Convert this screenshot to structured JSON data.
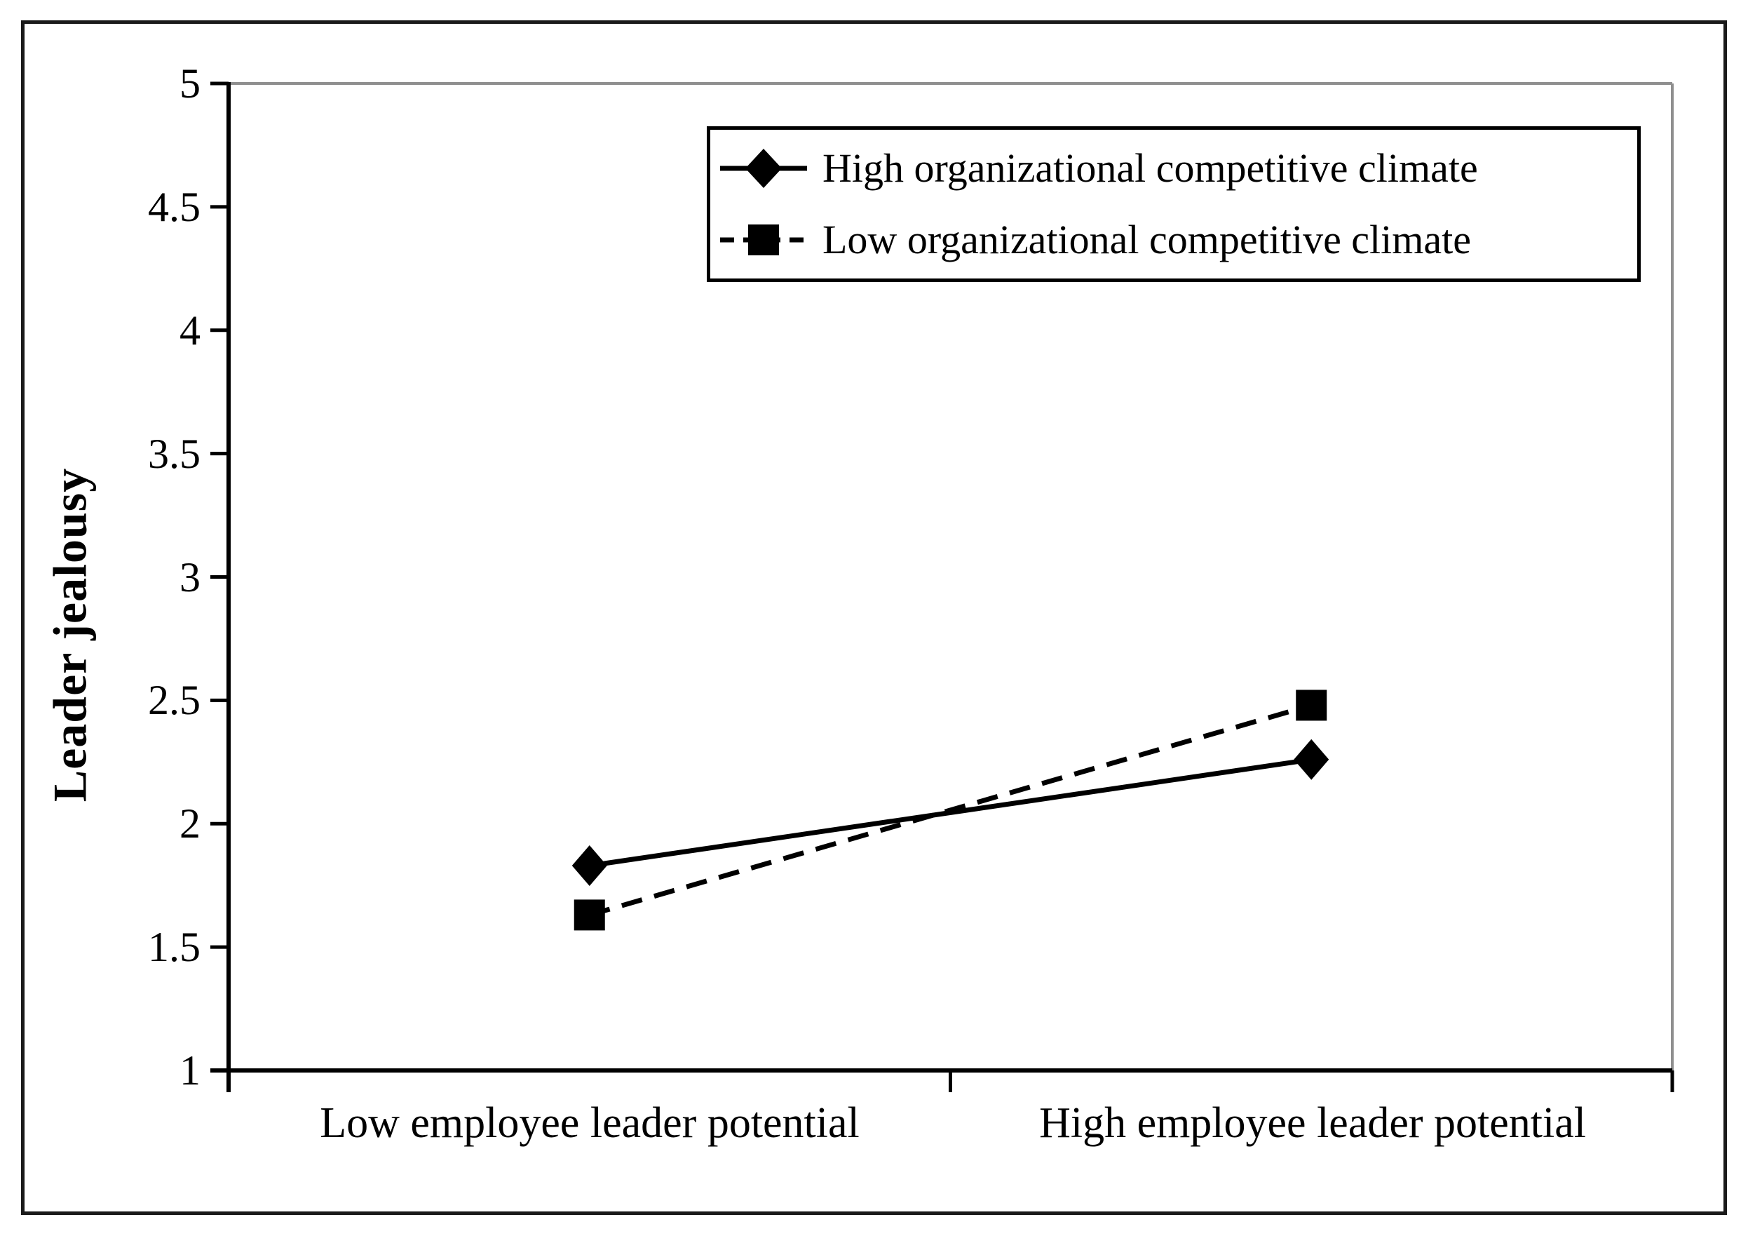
{
  "figure": {
    "background_color": "#ffffff",
    "frame_color": "#1a1a1a",
    "plot_border_color": "#8f8f8f",
    "axis_color": "#000000"
  },
  "chart_data": {
    "type": "line",
    "title": "",
    "categories": [
      "Low employee leader potential",
      "High employee leader potential"
    ],
    "series": [
      {
        "name": "High organizational competitive climate",
        "values": [
          1.83,
          2.26
        ],
        "line_style": "solid",
        "marker": "diamond",
        "color": "#000000"
      },
      {
        "name": "Low organizational competitive climate",
        "values": [
          1.63,
          2.48
        ],
        "line_style": "dashed",
        "marker": "square",
        "color": "#000000"
      }
    ],
    "xlabel": "",
    "ylabel": "Leader jealousy",
    "ylim": [
      1,
      5
    ],
    "ytick_step": 0.5,
    "yticks": [
      "5",
      "4.5",
      "4",
      "3.5",
      "3",
      "2.5",
      "2",
      "1.5",
      "1"
    ],
    "grid": false,
    "legend_position": "top-right"
  }
}
